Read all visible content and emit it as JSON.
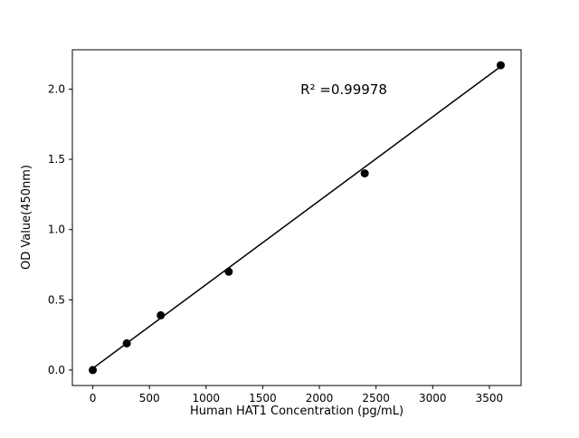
{
  "chart_data": {
    "type": "scatter",
    "title": "",
    "xlabel": "Human HAT1 Concentration (pg/mL)",
    "ylabel": "OD Value(450nm)",
    "annotation": "R² =0.99978",
    "x": [
      0,
      300,
      600,
      1200,
      2400,
      3600
    ],
    "y": [
      0.0,
      0.19,
      0.39,
      0.7,
      1.4,
      2.17
    ],
    "fit_line": {
      "x": [
        0,
        3600
      ],
      "y": [
        0.012,
        2.161
      ]
    },
    "xticks": [
      0,
      500,
      1000,
      1500,
      2000,
      2500,
      3000,
      3500
    ],
    "xtick_labels": [
      "0",
      "500",
      "1000",
      "1500",
      "2000",
      "2500",
      "3000",
      "3500"
    ],
    "yticks": [
      0.0,
      0.5,
      1.0,
      1.5,
      2.0
    ],
    "ytick_labels": [
      "0.0",
      "0.5",
      "1.0",
      "1.5",
      "2.0"
    ],
    "xlim": [
      -180,
      3780
    ],
    "ylim": [
      -0.11,
      2.28
    ],
    "grid": false,
    "legend": "none",
    "marker_color": "#000000",
    "line_color": "#000000",
    "background_color": "#ffffff"
  }
}
